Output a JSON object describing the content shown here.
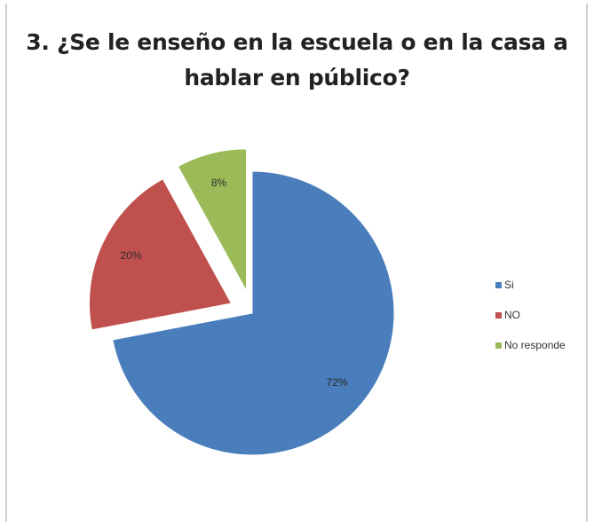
{
  "chart_data": {
    "type": "pie",
    "title_lines": [
      "3. ¿Se le enseño en la escuela o en la casa a",
      "hablar en público?"
    ],
    "slices": [
      {
        "label": "Si",
        "value": 72,
        "display": "72%",
        "color": "#4a7dbb",
        "exploded": false
      },
      {
        "label": "NO",
        "value": 20,
        "display": "20%",
        "color": "#c0504d",
        "exploded": true
      },
      {
        "label": "No responde",
        "value": 8,
        "display": "8%",
        "color": "#9bbb59",
        "exploded": true
      }
    ],
    "legend_position": "right",
    "start_angle_deg": 0,
    "direction": "clockwise"
  }
}
